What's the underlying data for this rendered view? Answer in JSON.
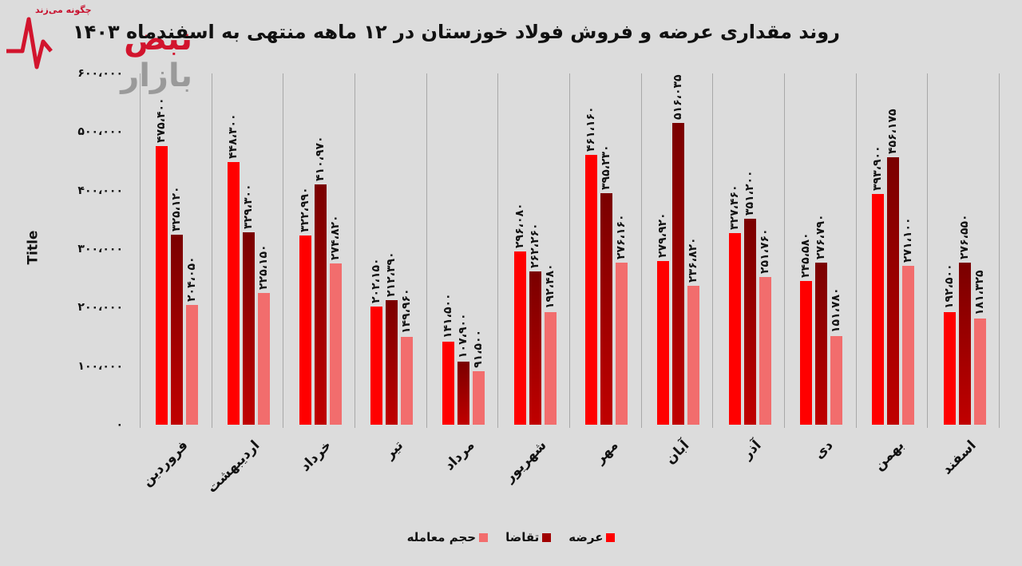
{
  "logo": {
    "name": "نبض بازار",
    "name_part1": "نبض",
    "name_part2": "بازار",
    "tagline": "چگونه می‌زند"
  },
  "chart_data": {
    "type": "bar",
    "title": "روند مقداری عرضه و فروش فولاد خوزستان در ۱۲ ماهه منتهی به اسفندماه ۱۴۰۳",
    "xlabel": "",
    "ylabel": "Title",
    "ylim": [
      0,
      600000
    ],
    "yticks": [
      0,
      100000,
      200000,
      300000,
      400000,
      500000,
      600000
    ],
    "ytick_labels": [
      "۰",
      "۱۰۰،۰۰۰",
      "۲۰۰،۰۰۰",
      "۳۰۰،۰۰۰",
      "۴۰۰،۰۰۰",
      "۵۰۰،۰۰۰",
      "۶۰۰،۰۰۰"
    ],
    "grid": "vertical separators between categories",
    "legend_position": "bottom",
    "categories": [
      "فروردین",
      "اردیبهشت",
      "خرداد",
      "تیر",
      "مرداد",
      "شهریور",
      "مهر",
      "آبان",
      "آذر",
      "دی",
      "بهمن",
      "اسفند"
    ],
    "series": [
      {
        "name": "عرضه",
        "color": "#ff0000",
        "values": [
          475400,
          448300,
          322990,
          202150,
          141500,
          296080,
          461160,
          279920,
          327460,
          245580,
          393900,
          192500
        ],
        "labels": [
          "۴۷۵،۴۰۰",
          "۴۴۸،۳۰۰",
          "۳۲۲،۹۹۰",
          "۲۰۲،۱۵۰",
          "۱۴۱،۵۰۰",
          "۲۹۶،۰۸۰",
          "۴۶۱،۱۶۰",
          "۲۷۹،۹۲۰",
          "۳۲۷،۴۶۰",
          "۲۴۵،۵۸۰",
          "۳۹۳،۹۰۰",
          "۱۹۲،۵۰۰"
        ]
      },
      {
        "name": "تقاضا",
        "color": "#a00000",
        "values": [
          325120,
          329300,
          410970,
          212390,
          107900,
          262260,
          395230,
          516035,
          351200,
          276790,
          456175,
          276550
        ],
        "labels": [
          "۳۲۵،۱۲۰",
          "۳۲۹،۳۰۰",
          "۴۱۰،۹۷۰",
          "۲۱۲،۳۹۰",
          "۱۰۷،۹۰۰",
          "۲۶۲،۲۶۰",
          "۳۹۵،۲۳۰",
          "۵۱۶،۰۳۵",
          "۳۵۱،۲۰۰",
          "۲۷۶،۷۹۰",
          "۴۵۶،۱۷۵",
          "۲۷۶،۵۵۰"
        ]
      },
      {
        "name": "حجم معامله",
        "color": "#f26d6d",
        "values": [
          204050,
          225150,
          274820,
          149960,
          91500,
          192480,
          276160,
          236820,
          251760,
          151780,
          271100,
          181325
        ],
        "labels": [
          "۲۰۴،۰۵۰",
          "۲۲۵،۱۵۰",
          "۲۷۴،۸۲۰",
          "۱۴۹،۹۶۰",
          "۹۱،۵۰۰",
          "۱۹۲،۴۸۰",
          "۲۷۶،۱۶۰",
          "۲۳۶،۸۲۰",
          "۲۵۱،۷۶۰",
          "۱۵۱،۷۸۰",
          "۲۷۱،۱۰۰",
          "۱۸۱،۳۲۵"
        ]
      }
    ]
  }
}
